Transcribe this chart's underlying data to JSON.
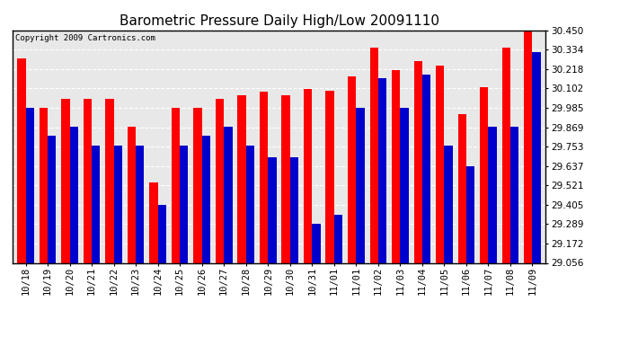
{
  "title": "Barometric Pressure Daily High/Low 20091110",
  "copyright": "Copyright 2009 Cartronics.com",
  "labels": [
    "10/18",
    "10/19",
    "10/20",
    "10/21",
    "10/22",
    "10/23",
    "10/24",
    "10/25",
    "10/26",
    "10/27",
    "10/28",
    "10/29",
    "10/30",
    "10/31",
    "11/01",
    "11/01",
    "11/02",
    "11/03",
    "11/04",
    "11/05",
    "11/06",
    "11/07",
    "11/08",
    "11/09"
  ],
  "highs": [
    30.28,
    29.985,
    30.04,
    30.04,
    30.04,
    29.87,
    29.54,
    29.985,
    29.985,
    30.04,
    30.06,
    30.08,
    30.06,
    30.1,
    30.09,
    30.175,
    30.345,
    30.21,
    30.265,
    30.24,
    29.95,
    30.11,
    30.345,
    30.46
  ],
  "lows": [
    29.985,
    29.82,
    29.87,
    29.76,
    29.76,
    29.76,
    29.405,
    29.76,
    29.82,
    29.87,
    29.76,
    29.69,
    29.69,
    29.29,
    29.345,
    29.985,
    30.165,
    29.985,
    30.185,
    29.76,
    29.637,
    29.87,
    29.87,
    30.32
  ],
  "high_color": "#ff0000",
  "low_color": "#0000cc",
  "background_color": "#ffffff",
  "plot_bg_color": "#e8e8e8",
  "grid_color": "#ffffff",
  "ymin": 29.056,
  "ymax": 30.45,
  "yticks": [
    29.056,
    29.172,
    29.289,
    29.405,
    29.521,
    29.637,
    29.753,
    29.869,
    29.985,
    30.102,
    30.218,
    30.334,
    30.45
  ],
  "title_fontsize": 11,
  "tick_fontsize": 7.5,
  "bar_width": 0.38
}
